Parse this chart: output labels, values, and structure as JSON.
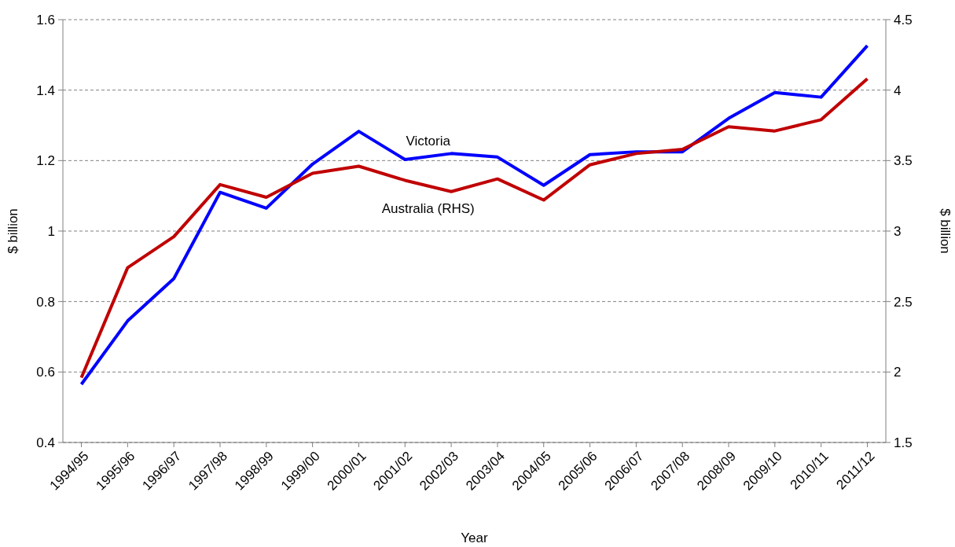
{
  "chart_data": {
    "type": "line",
    "xlabel": "Year",
    "ylabel": "$ billion",
    "y2label": "$ billion",
    "categories": [
      "1994/95",
      "1995/96",
      "1996/97",
      "1997/98",
      "1998/99",
      "1999/00",
      "2000/01",
      "2001/02",
      "2002/03",
      "2003/04",
      "2004/05",
      "2005/06",
      "2006/07",
      "2007/08",
      "2008/09",
      "2009/10",
      "2010/11",
      "2011/12"
    ],
    "series": [
      {
        "name": "Victoria",
        "color": "#0000ff",
        "values": [
          0.565,
          0.745,
          0.865,
          1.11,
          1.065,
          1.19,
          1.283,
          1.203,
          1.22,
          1.21,
          1.13,
          1.217,
          1.225,
          1.225,
          1.32,
          1.393,
          1.38,
          1.526
        ]
      },
      {
        "name": "Australia (RHS)",
        "color": "#c00000",
        "axis": "y2",
        "values": [
          1.96,
          2.74,
          2.96,
          3.33,
          3.24,
          3.41,
          3.46,
          3.36,
          3.28,
          3.37,
          3.22,
          3.47,
          3.55,
          3.58,
          3.74,
          3.71,
          3.79,
          4.08
        ]
      }
    ],
    "ylim": [
      0.4,
      1.6
    ],
    "yticks": [
      0.4,
      0.6,
      0.8,
      1,
      1.2,
      1.4,
      1.6
    ],
    "y2lim": [
      1.5,
      4.5
    ],
    "y2ticks": [
      1.5,
      2,
      2.5,
      3,
      3.5,
      4,
      4.5
    ],
    "grid": "y",
    "legend": false,
    "marker": "none",
    "line_style": "solid"
  }
}
